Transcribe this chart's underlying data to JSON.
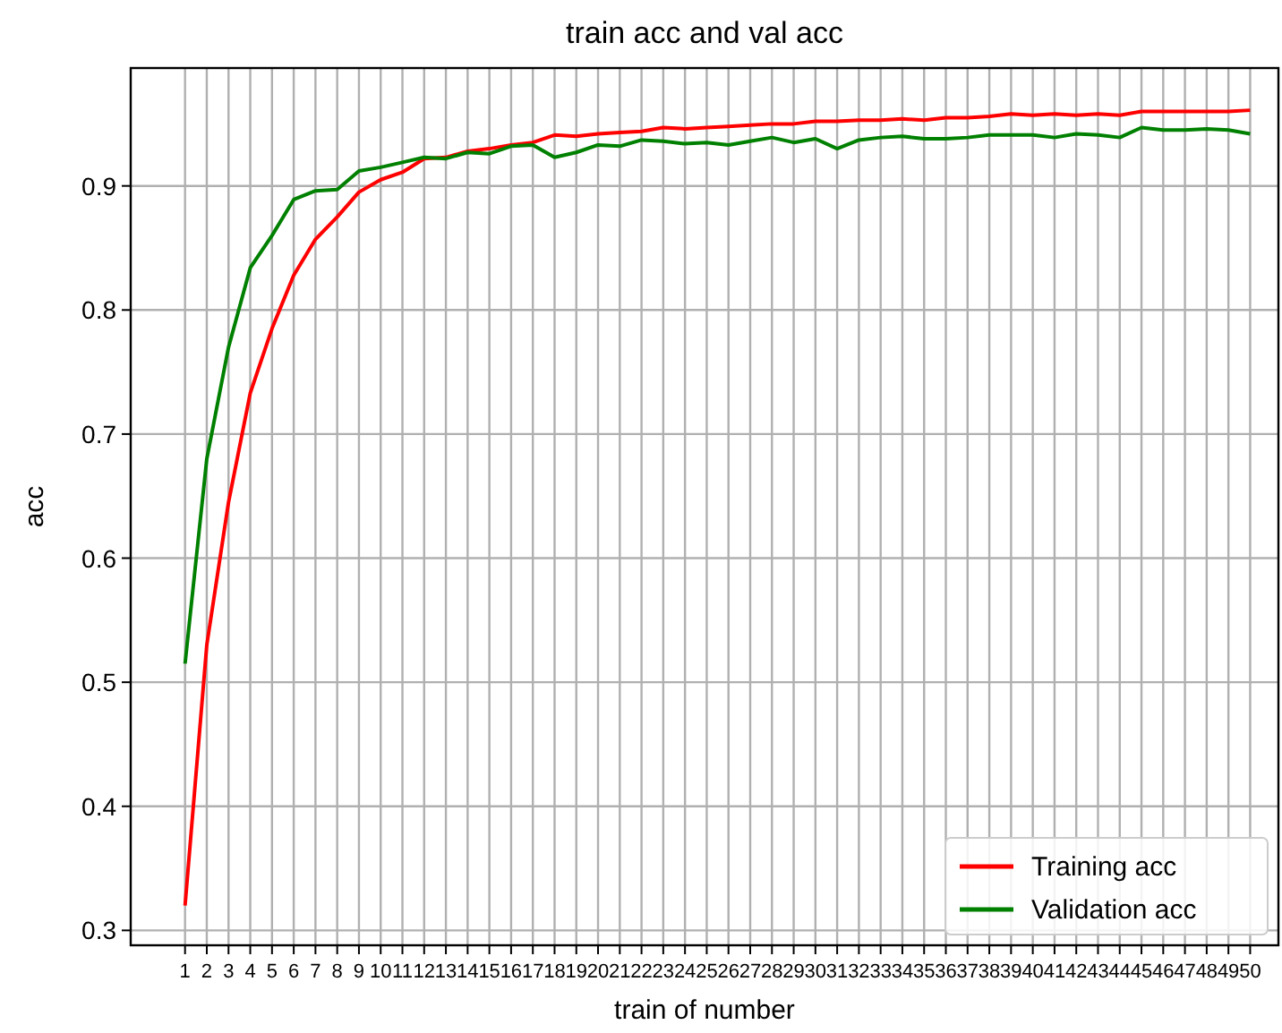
{
  "chart_data": {
    "type": "line",
    "title": "train acc and val acc",
    "xlabel": "train of number",
    "ylabel": "acc",
    "x": [
      1,
      2,
      3,
      4,
      5,
      6,
      7,
      8,
      9,
      10,
      11,
      12,
      13,
      14,
      15,
      16,
      17,
      18,
      19,
      20,
      21,
      22,
      23,
      24,
      25,
      26,
      27,
      28,
      29,
      30,
      31,
      32,
      33,
      34,
      35,
      36,
      37,
      38,
      39,
      40,
      41,
      42,
      43,
      44,
      45,
      46,
      47,
      48,
      49,
      50
    ],
    "xlim": [
      -1.5,
      51.3
    ],
    "xticks": [
      1,
      2,
      3,
      4,
      5,
      6,
      7,
      8,
      9,
      10,
      11,
      12,
      13,
      14,
      15,
      16,
      17,
      18,
      19,
      20,
      21,
      22,
      23,
      24,
      25,
      26,
      27,
      28,
      29,
      30,
      31,
      32,
      33,
      34,
      35,
      36,
      37,
      38,
      39,
      40,
      41,
      42,
      43,
      44,
      45,
      46,
      47,
      48,
      49,
      50
    ],
    "ylim": [
      0.288,
      0.995
    ],
    "yticks": [
      0.3,
      0.4,
      0.5,
      0.6,
      0.7,
      0.8,
      0.9
    ],
    "grid": true,
    "legend": "bottom right",
    "series": [
      {
        "name": "Training acc",
        "color": "#ff0000",
        "values": [
          0.32,
          0.53,
          0.645,
          0.733,
          0.785,
          0.828,
          0.857,
          0.875,
          0.895,
          0.905,
          0.911,
          0.922,
          0.923,
          0.928,
          0.93,
          0.933,
          0.935,
          0.941,
          0.94,
          0.942,
          0.943,
          0.944,
          0.947,
          0.946,
          0.947,
          0.948,
          0.949,
          0.95,
          0.95,
          0.952,
          0.952,
          0.953,
          0.953,
          0.954,
          0.953,
          0.955,
          0.955,
          0.956,
          0.958,
          0.957,
          0.958,
          0.957,
          0.958,
          0.957,
          0.96,
          0.96,
          0.96,
          0.96,
          0.96,
          0.961
        ]
      },
      {
        "name": "Validation acc",
        "color": "#008000",
        "values": [
          0.515,
          0.68,
          0.77,
          0.834,
          0.86,
          0.889,
          0.896,
          0.897,
          0.912,
          0.915,
          0.919,
          0.923,
          0.922,
          0.927,
          0.926,
          0.932,
          0.933,
          0.923,
          0.927,
          0.933,
          0.932,
          0.937,
          0.936,
          0.934,
          0.935,
          0.933,
          0.936,
          0.939,
          0.935,
          0.938,
          0.93,
          0.937,
          0.939,
          0.94,
          0.938,
          0.938,
          0.939,
          0.941,
          0.941,
          0.941,
          0.939,
          0.942,
          0.941,
          0.939,
          0.947,
          0.945,
          0.945,
          0.946,
          0.945,
          0.942
        ]
      }
    ]
  }
}
